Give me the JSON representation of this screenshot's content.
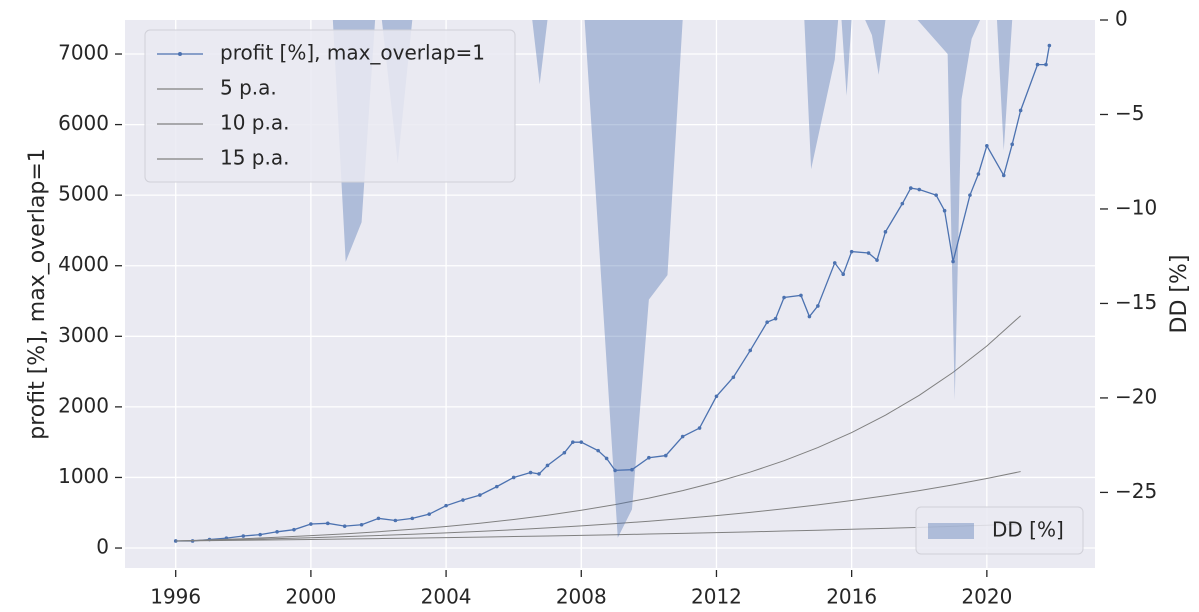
{
  "chart_data": {
    "type": "line",
    "ylabel": "profit [%], max_overlap=1",
    "y2label": "DD [%]",
    "xlim": [
      1994.5,
      2023.2
    ],
    "xticks": [
      1996,
      2000,
      2004,
      2008,
      2012,
      2016,
      2020
    ],
    "ylim": [
      -283,
      7482
    ],
    "yticks": [
      0,
      1000,
      2000,
      3000,
      4000,
      5000,
      6000,
      7000
    ],
    "y2lim": [
      -29,
      0
    ],
    "y2ticks": [
      0,
      {
        "value": -5,
        "label": "−5"
      },
      {
        "value": -10,
        "label": "−10"
      },
      {
        "value": -15,
        "label": "−15"
      },
      {
        "value": -20,
        "label": "−20"
      },
      {
        "value": -25,
        "label": "−25"
      }
    ],
    "grid": true,
    "legend": "upper left",
    "legend2": "lower right",
    "series": [
      {
        "name": "profit [%], max_overlap=1",
        "color": "#4c72b0",
        "marker": true,
        "x": [
          1996,
          1996.5,
          1997,
          1997.5,
          1998,
          1998.5,
          1999,
          1999.5,
          2000,
          2000.5,
          2001,
          2001.5,
          2002,
          2002.5,
          2003,
          2003.5,
          2004,
          2004.5,
          2005,
          2005.5,
          2006,
          2006.5,
          2006.75,
          2007,
          2007.5,
          2007.75,
          2008,
          2008.5,
          2008.75,
          2009,
          2009.5,
          2010,
          2010.5,
          2011,
          2011.5,
          2012,
          2012.5,
          2013,
          2013.5,
          2013.75,
          2014,
          2014.5,
          2014.75,
          2015,
          2015.5,
          2015.75,
          2016,
          2016.5,
          2016.75,
          2017,
          2017.5,
          2017.75,
          2018,
          2018.5,
          2018.75,
          2019,
          2019.5,
          2019.75,
          2020,
          2020.5,
          2020.75,
          2021,
          2021.5,
          2021.75,
          2021.85
        ],
        "values": [
          100,
          100,
          120,
          140,
          170,
          190,
          230,
          260,
          340,
          350,
          310,
          330,
          420,
          390,
          420,
          480,
          600,
          680,
          750,
          870,
          1000,
          1070,
          1050,
          1170,
          1350,
          1500,
          1500,
          1380,
          1270,
          1100,
          1110,
          1280,
          1310,
          1580,
          1700,
          2150,
          2420,
          2800,
          3200,
          3250,
          3550,
          3580,
          3280,
          3430,
          4040,
          3880,
          4200,
          4180,
          4080,
          4480,
          4880,
          5100,
          5080,
          5000,
          4780,
          4060,
          5000,
          5300,
          5700,
          5280,
          5720,
          6200,
          6850,
          6850,
          7120
        ]
      },
      {
        "name": "5 p.a.",
        "color": "#808080",
        "x": [
          1996,
          1997,
          1998,
          1999,
          2000,
          2001,
          2002,
          2003,
          2004,
          2005,
          2006,
          2007,
          2008,
          2009,
          2010,
          2011,
          2012,
          2013,
          2014,
          2015,
          2016,
          2017,
          2018,
          2019,
          2020,
          2021
        ],
        "values": [
          100,
          105,
          110.3,
          115.8,
          121.6,
          127.6,
          134,
          140.7,
          147.7,
          155.1,
          162.9,
          171,
          179.6,
          188.6,
          198,
          207.9,
          218.3,
          229.2,
          240.7,
          252.7,
          265.3,
          278.6,
          292.5,
          307.2,
          322.5,
          338.6
        ]
      },
      {
        "name": "10 p.a.",
        "color": "#808080",
        "x": [
          1996,
          1997,
          1998,
          1999,
          2000,
          2001,
          2002,
          2003,
          2004,
          2005,
          2006,
          2007,
          2008,
          2009,
          2010,
          2011,
          2012,
          2013,
          2014,
          2015,
          2016,
          2017,
          2018,
          2019,
          2020,
          2021
        ],
        "values": [
          100,
          110,
          121,
          133.1,
          146.4,
          161.1,
          177.2,
          194.9,
          214.4,
          235.8,
          259.4,
          285.3,
          313.8,
          345.2,
          379.7,
          417.7,
          459.5,
          505.4,
          556,
          611.6,
          672.7,
          740,
          814,
          895.4,
          985,
          1083.5
        ]
      },
      {
        "name": "15 p.a.",
        "color": "#808080",
        "x": [
          1996,
          1997,
          1998,
          1999,
          2000,
          2001,
          2002,
          2003,
          2004,
          2005,
          2006,
          2007,
          2008,
          2009,
          2010,
          2011,
          2012,
          2013,
          2014,
          2015,
          2016,
          2017,
          2018,
          2019,
          2020,
          2021
        ],
        "values": [
          100,
          115,
          132.3,
          152.1,
          174.9,
          201.1,
          231.3,
          266,
          305.9,
          351.8,
          404.6,
          465.2,
          535,
          615.3,
          707.6,
          813.7,
          935.8,
          1076.1,
          1237.5,
          1423.1,
          1636.7,
          1882.2,
          2164.5,
          2489.2,
          2862.5,
          3291.9
        ]
      },
      {
        "name": "DD [%]",
        "color": "#4c72b0",
        "axis": "y2",
        "area": true,
        "x": [
          1996,
          2000.65,
          2001.03,
          2001.5,
          2001.9,
          2002.1,
          2002.57,
          2003.0,
          2006.55,
          2006.77,
          2007.0,
          2008.1,
          2009.08,
          2009.5,
          2010.0,
          2010.55,
          2011.0,
          2014.6,
          2014.8,
          2015.5,
          2015.6,
          2015.7,
          2015.85,
          2016.0,
          2016.4,
          2016.6,
          2016.8,
          2017.0,
          2017.95,
          2018.84,
          2019.05,
          2019.25,
          2019.55,
          2019.8,
          2020.3,
          2020.5,
          2020.75,
          2021.85
        ],
        "values": [
          0,
          0,
          -12.8,
          -10.7,
          0,
          0,
          -7.6,
          0,
          0,
          -3.4,
          0,
          0,
          -27.4,
          -25.9,
          -14.8,
          -13.5,
          0,
          0,
          -7.9,
          -2.1,
          0,
          0,
          -4.0,
          0,
          0,
          -0.8,
          -2.9,
          0,
          0,
          -1.8,
          -20.1,
          -4.2,
          -1.0,
          0,
          0,
          -6.9,
          0,
          0
        ]
      }
    ]
  }
}
